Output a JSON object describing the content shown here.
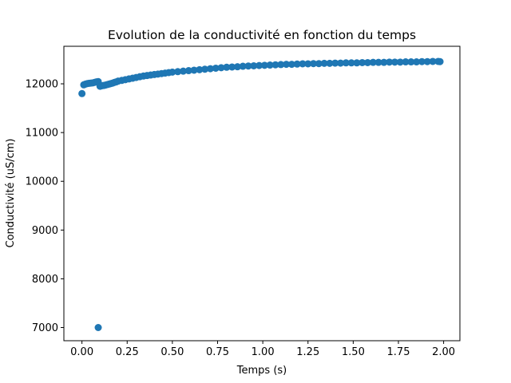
{
  "chart_data": {
    "type": "scatter",
    "title": "Evolution de la conductivité en fonction du temps",
    "xlabel": "Temps (s)",
    "ylabel": "Conductivité (uS/cm)",
    "xlim": [
      -0.1,
      2.09
    ],
    "ylim": [
      6730,
      12770
    ],
    "xticks": [
      0.0,
      0.25,
      0.5,
      0.75,
      1.0,
      1.25,
      1.5,
      1.75,
      2.0
    ],
    "xtick_labels": [
      "0.00",
      "0.25",
      "0.50",
      "0.75",
      "1.00",
      "1.25",
      "1.50",
      "1.75",
      "2.00"
    ],
    "yticks": [
      7000,
      8000,
      9000,
      10000,
      11000,
      12000
    ],
    "ytick_labels": [
      "7000",
      "8000",
      "9000",
      "10000",
      "11000",
      "12000"
    ],
    "grid": false,
    "marker_color": "#1f77b4",
    "series": [
      {
        "points": [
          [
            0.0,
            11800
          ],
          [
            0.09,
            7000
          ],
          [
            0.01,
            11980
          ],
          [
            0.02,
            11995
          ],
          [
            0.03,
            12005
          ],
          [
            0.04,
            12010
          ],
          [
            0.05,
            12015
          ],
          [
            0.06,
            12020
          ],
          [
            0.07,
            12030
          ],
          [
            0.08,
            12040
          ],
          [
            0.09,
            12045
          ],
          [
            0.1,
            11950
          ],
          [
            0.11,
            11960
          ],
          [
            0.12,
            11965
          ],
          [
            0.13,
            11975
          ],
          [
            0.14,
            11985
          ],
          [
            0.15,
            11995
          ],
          [
            0.16,
            12005
          ],
          [
            0.17,
            12015
          ],
          [
            0.18,
            12030
          ],
          [
            0.19,
            12040
          ],
          [
            0.2,
            12055
          ],
          [
            0.22,
            12070
          ],
          [
            0.24,
            12085
          ],
          [
            0.26,
            12100
          ],
          [
            0.28,
            12115
          ],
          [
            0.3,
            12130
          ],
          [
            0.32,
            12145
          ],
          [
            0.34,
            12160
          ],
          [
            0.36,
            12170
          ],
          [
            0.38,
            12180
          ],
          [
            0.4,
            12190
          ],
          [
            0.42,
            12200
          ],
          [
            0.44,
            12210
          ],
          [
            0.46,
            12220
          ],
          [
            0.48,
            12230
          ],
          [
            0.5,
            12240
          ],
          [
            0.53,
            12250
          ],
          [
            0.56,
            12260
          ],
          [
            0.59,
            12270
          ],
          [
            0.62,
            12280
          ],
          [
            0.65,
            12290
          ],
          [
            0.68,
            12300
          ],
          [
            0.71,
            12310
          ],
          [
            0.74,
            12320
          ],
          [
            0.77,
            12330
          ],
          [
            0.8,
            12340
          ],
          [
            0.83,
            12345
          ],
          [
            0.86,
            12350
          ],
          [
            0.89,
            12360
          ],
          [
            0.92,
            12365
          ],
          [
            0.95,
            12370
          ],
          [
            0.98,
            12375
          ],
          [
            1.01,
            12380
          ],
          [
            1.04,
            12385
          ],
          [
            1.07,
            12390
          ],
          [
            1.1,
            12395
          ],
          [
            1.13,
            12400
          ],
          [
            1.16,
            12400
          ],
          [
            1.19,
            12405
          ],
          [
            1.22,
            12410
          ],
          [
            1.25,
            12410
          ],
          [
            1.28,
            12415
          ],
          [
            1.31,
            12415
          ],
          [
            1.34,
            12420
          ],
          [
            1.37,
            12420
          ],
          [
            1.4,
            12425
          ],
          [
            1.43,
            12425
          ],
          [
            1.46,
            12430
          ],
          [
            1.49,
            12430
          ],
          [
            1.52,
            12430
          ],
          [
            1.55,
            12435
          ],
          [
            1.58,
            12435
          ],
          [
            1.61,
            12440
          ],
          [
            1.64,
            12440
          ],
          [
            1.67,
            12440
          ],
          [
            1.7,
            12445
          ],
          [
            1.73,
            12445
          ],
          [
            1.76,
            12445
          ],
          [
            1.79,
            12450
          ],
          [
            1.82,
            12450
          ],
          [
            1.85,
            12450
          ],
          [
            1.88,
            12455
          ],
          [
            1.91,
            12455
          ],
          [
            1.94,
            12460
          ],
          [
            1.97,
            12460
          ],
          [
            1.98,
            12455
          ]
        ]
      }
    ]
  }
}
